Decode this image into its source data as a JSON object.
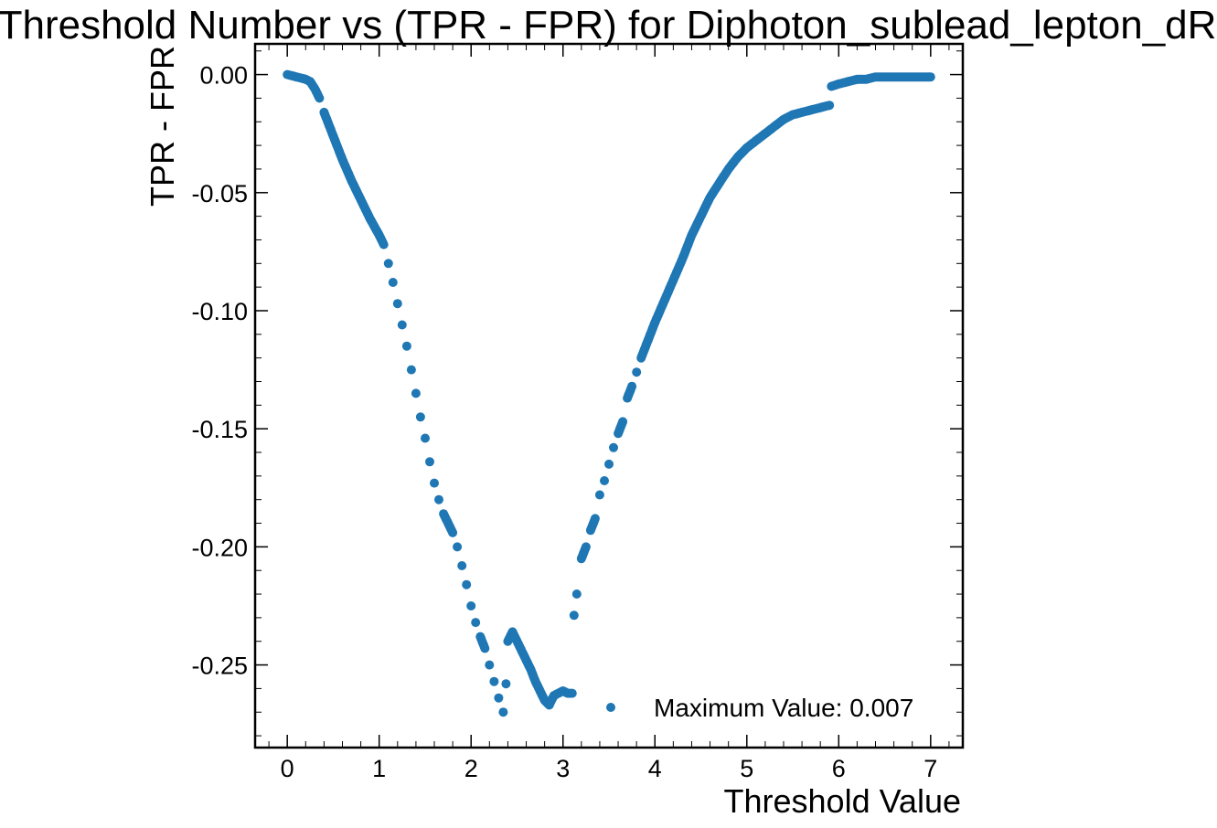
{
  "chart_data": {
    "type": "scatter",
    "title": "Threshold Number vs (TPR - FPR) for Diphoton_sublead_lepton_dR",
    "xlabel": "Threshold Value",
    "ylabel": "TPR - FPR",
    "xlim": [
      -0.35,
      7.35
    ],
    "ylim": [
      -0.285,
      0.013
    ],
    "xticks": [
      0,
      1,
      2,
      3,
      4,
      5,
      6,
      7
    ],
    "xtick_labels": [
      "0",
      "1",
      "2",
      "3",
      "4",
      "5",
      "6",
      "7"
    ],
    "yticks": [
      0.0,
      -0.05,
      -0.1,
      -0.15,
      -0.2,
      -0.25
    ],
    "ytick_labels": [
      "0.00",
      "-0.05",
      "-0.10",
      "-0.15",
      "-0.20",
      "-0.25"
    ],
    "grid": false,
    "legend_position": "lower-right",
    "series": [
      {
        "name": "Maximum Value: 0.007",
        "color": "#1f77b4",
        "points": [
          [
            0.0,
            0.0
          ],
          [
            0.1,
            -0.001
          ],
          [
            0.2,
            -0.002
          ],
          [
            0.25,
            -0.003
          ],
          [
            0.3,
            -0.006
          ],
          [
            0.35,
            -0.01
          ],
          [
            0.4,
            -0.016
          ],
          [
            0.5,
            -0.026
          ],
          [
            0.6,
            -0.036
          ],
          [
            0.7,
            -0.045
          ],
          [
            0.8,
            -0.053
          ],
          [
            0.9,
            -0.061
          ],
          [
            1.0,
            -0.068
          ],
          [
            1.05,
            -0.072
          ],
          [
            1.1,
            -0.08
          ],
          [
            1.15,
            -0.088
          ],
          [
            1.2,
            -0.097
          ],
          [
            1.25,
            -0.106
          ],
          [
            1.3,
            -0.115
          ],
          [
            1.35,
            -0.125
          ],
          [
            1.4,
            -0.135
          ],
          [
            1.45,
            -0.145
          ],
          [
            1.5,
            -0.154
          ],
          [
            1.55,
            -0.164
          ],
          [
            1.6,
            -0.173
          ],
          [
            1.65,
            -0.18
          ],
          [
            1.7,
            -0.186
          ],
          [
            1.75,
            -0.19
          ],
          [
            1.8,
            -0.194
          ],
          [
            1.85,
            -0.2
          ],
          [
            1.9,
            -0.208
          ],
          [
            1.95,
            -0.216
          ],
          [
            2.0,
            -0.225
          ],
          [
            2.05,
            -0.232
          ],
          [
            2.1,
            -0.238
          ],
          [
            2.15,
            -0.243
          ],
          [
            2.2,
            -0.25
          ],
          [
            2.25,
            -0.257
          ],
          [
            2.3,
            -0.264
          ],
          [
            2.35,
            -0.27
          ],
          [
            2.38,
            -0.258
          ],
          [
            2.4,
            -0.24
          ],
          [
            2.45,
            -0.236
          ],
          [
            2.5,
            -0.24
          ],
          [
            2.55,
            -0.244
          ],
          [
            2.6,
            -0.248
          ],
          [
            2.65,
            -0.252
          ],
          [
            2.7,
            -0.257
          ],
          [
            2.75,
            -0.261
          ],
          [
            2.8,
            -0.265
          ],
          [
            2.85,
            -0.267
          ],
          [
            2.9,
            -0.263
          ],
          [
            2.95,
            -0.262
          ],
          [
            3.0,
            -0.261
          ],
          [
            3.05,
            -0.262
          ],
          [
            3.1,
            -0.262
          ],
          [
            3.12,
            -0.229
          ],
          [
            3.15,
            -0.22
          ],
          [
            3.2,
            -0.205
          ],
          [
            3.25,
            -0.2
          ],
          [
            3.3,
            -0.193
          ],
          [
            3.35,
            -0.188
          ],
          [
            3.4,
            -0.178
          ],
          [
            3.45,
            -0.172
          ],
          [
            3.5,
            -0.165
          ],
          [
            3.55,
            -0.158
          ],
          [
            3.6,
            -0.152
          ],
          [
            3.65,
            -0.147
          ],
          [
            3.7,
            -0.137
          ],
          [
            3.75,
            -0.132
          ],
          [
            3.8,
            -0.126
          ],
          [
            3.85,
            -0.12
          ],
          [
            3.9,
            -0.115
          ],
          [
            3.95,
            -0.11
          ],
          [
            4.0,
            -0.105
          ],
          [
            4.1,
            -0.096
          ],
          [
            4.2,
            -0.087
          ],
          [
            4.3,
            -0.078
          ],
          [
            4.4,
            -0.068
          ],
          [
            4.5,
            -0.06
          ],
          [
            4.6,
            -0.052
          ],
          [
            4.7,
            -0.046
          ],
          [
            4.8,
            -0.04
          ],
          [
            4.9,
            -0.035
          ],
          [
            5.0,
            -0.031
          ],
          [
            5.1,
            -0.028
          ],
          [
            5.2,
            -0.025
          ],
          [
            5.3,
            -0.022
          ],
          [
            5.4,
            -0.019
          ],
          [
            5.5,
            -0.017
          ],
          [
            5.6,
            -0.016
          ],
          [
            5.7,
            -0.015
          ],
          [
            5.8,
            -0.014
          ],
          [
            5.9,
            -0.013
          ],
          [
            5.92,
            -0.005
          ],
          [
            6.0,
            -0.004
          ],
          [
            6.1,
            -0.003
          ],
          [
            6.2,
            -0.002
          ],
          [
            6.3,
            -0.002
          ],
          [
            6.4,
            -0.001
          ],
          [
            6.5,
            -0.001
          ],
          [
            6.6,
            -0.001
          ],
          [
            6.7,
            -0.001
          ],
          [
            6.8,
            -0.001
          ],
          [
            6.9,
            -0.001
          ],
          [
            7.0,
            -0.001
          ]
        ]
      }
    ]
  }
}
